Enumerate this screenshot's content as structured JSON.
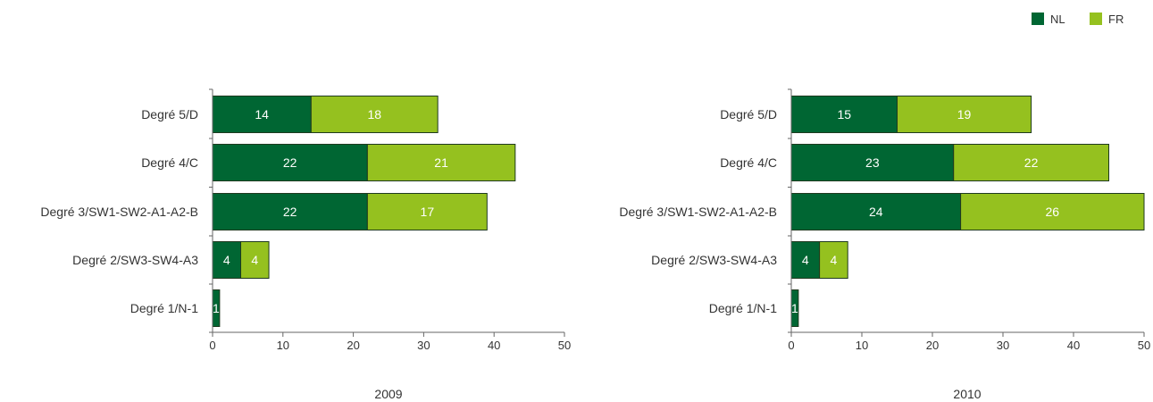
{
  "colors": {
    "NL": "#006633",
    "FR": "#95c11f",
    "axis": "#666666"
  },
  "legend": [
    {
      "key": "NL",
      "label": "NL"
    },
    {
      "key": "FR",
      "label": "FR"
    }
  ],
  "chart_data": [
    {
      "type": "bar",
      "orientation": "horizontal",
      "stacked": true,
      "xlabel": "2009",
      "categories": [
        "Degré 5/D",
        "Degré 4/C",
        "Degré 3/SW1-SW2-A1-A2-B",
        "Degré 2/SW3-SW4-A3",
        "Degré 1/N-1"
      ],
      "series": [
        {
          "name": "NL",
          "values": [
            14,
            22,
            22,
            4,
            1
          ]
        },
        {
          "name": "FR",
          "values": [
            18,
            21,
            17,
            4,
            0
          ]
        }
      ],
      "xlim": [
        0,
        50
      ],
      "ticks": [
        0,
        10,
        20,
        30,
        40,
        50
      ],
      "legend_position": "top-right",
      "grid": false
    },
    {
      "type": "bar",
      "orientation": "horizontal",
      "stacked": true,
      "xlabel": "2010",
      "categories": [
        "Degré 5/D",
        "Degré 4/C",
        "Degré 3/SW1-SW2-A1-A2-B",
        "Degré 2/SW3-SW4-A3",
        "Degré 1/N-1"
      ],
      "series": [
        {
          "name": "NL",
          "values": [
            15,
            23,
            24,
            4,
            1
          ]
        },
        {
          "name": "FR",
          "values": [
            19,
            22,
            26,
            4,
            0
          ]
        }
      ],
      "xlim": [
        0,
        50
      ],
      "ticks": [
        0,
        10,
        20,
        30,
        40,
        50
      ],
      "legend_position": "top-right",
      "grid": false
    }
  ]
}
